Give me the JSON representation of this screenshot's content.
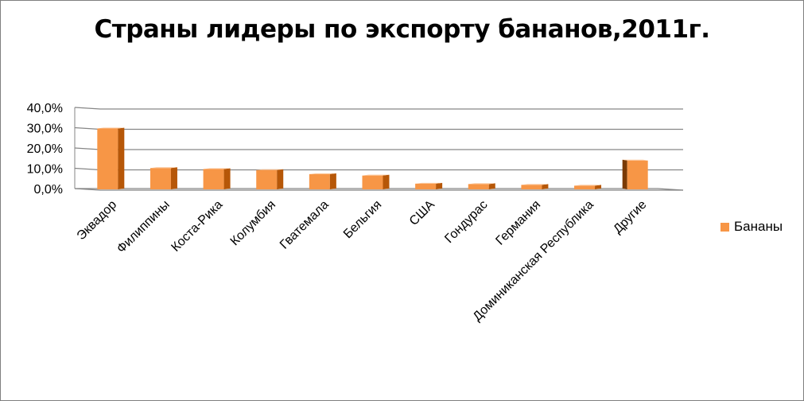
{
  "chart_data": {
    "type": "bar",
    "title": "Страны лидеры по экспорту бананов,2011г.",
    "categories": [
      "Эквадор",
      "Филиппины",
      "Коста-Рика",
      "Колумбия",
      "Гватемала",
      "Бельгия",
      "США",
      "Гондурас",
      "Германия",
      "Доминиканская Республика",
      "Другие"
    ],
    "series": [
      {
        "name": "Бананы",
        "values": [
          30.0,
          10.5,
          10.0,
          9.5,
          7.5,
          6.8,
          2.8,
          2.6,
          2.2,
          1.8,
          14.2
        ]
      }
    ],
    "y_ticks": [
      "0,0%",
      "10,0%",
      "20,0%",
      "30,0%",
      "40,0%"
    ],
    "ylim": [
      0,
      40
    ],
    "grid": true,
    "legend_position": "right",
    "colors": {
      "front": "#f79646",
      "side": "#b65708",
      "top": "#fbbf8d"
    }
  }
}
